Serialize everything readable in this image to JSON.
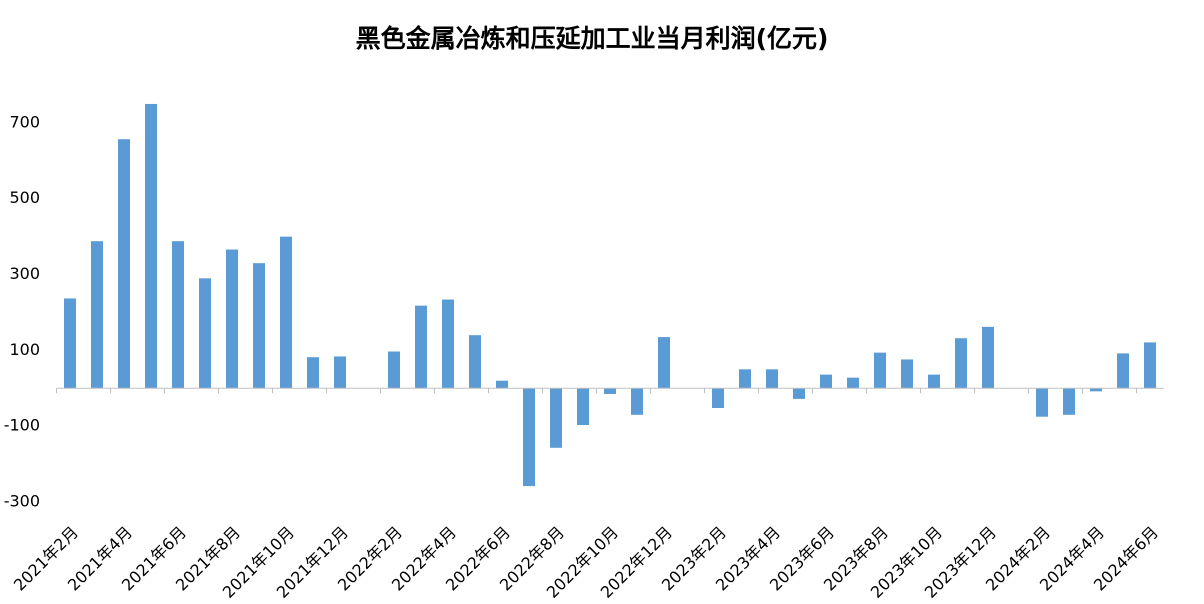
{
  "chart_data": {
    "type": "bar",
    "title": "黑色金属冶炼和压延加工业当月利润(亿元)",
    "categories": [
      "2021年2月",
      null,
      "2021年4月",
      null,
      "2021年6月",
      null,
      "2021年8月",
      null,
      "2021年10月",
      null,
      "2021年12月",
      null,
      "2022年2月",
      null,
      "2022年4月",
      null,
      "2022年6月",
      null,
      "2022年8月",
      null,
      "2022年10月",
      null,
      "2022年12月",
      null,
      "2023年2月",
      null,
      "2023年4月",
      null,
      "2023年6月",
      null,
      "2023年8月",
      null,
      "2023年10月",
      null,
      "2023年12月",
      null,
      "2024年2月",
      null,
      "2024年4月",
      null,
      "2024年6月"
    ],
    "values": [
      237,
      388,
      657,
      750,
      388,
      290,
      366,
      330,
      400,
      82,
      84,
      null,
      97,
      218,
      234,
      140,
      20,
      -258,
      -157,
      -97,
      -15,
      -70,
      135,
      null,
      -52,
      50,
      50,
      -28,
      36,
      28,
      94,
      76,
      36,
      132,
      162,
      null,
      -75,
      -70,
      -8,
      92,
      121
    ],
    "color": "#5b9bd5",
    "ylim": [
      -300,
      800
    ],
    "yticks": [
      -300,
      -100,
      100,
      300,
      500,
      700
    ],
    "grid": false
  }
}
